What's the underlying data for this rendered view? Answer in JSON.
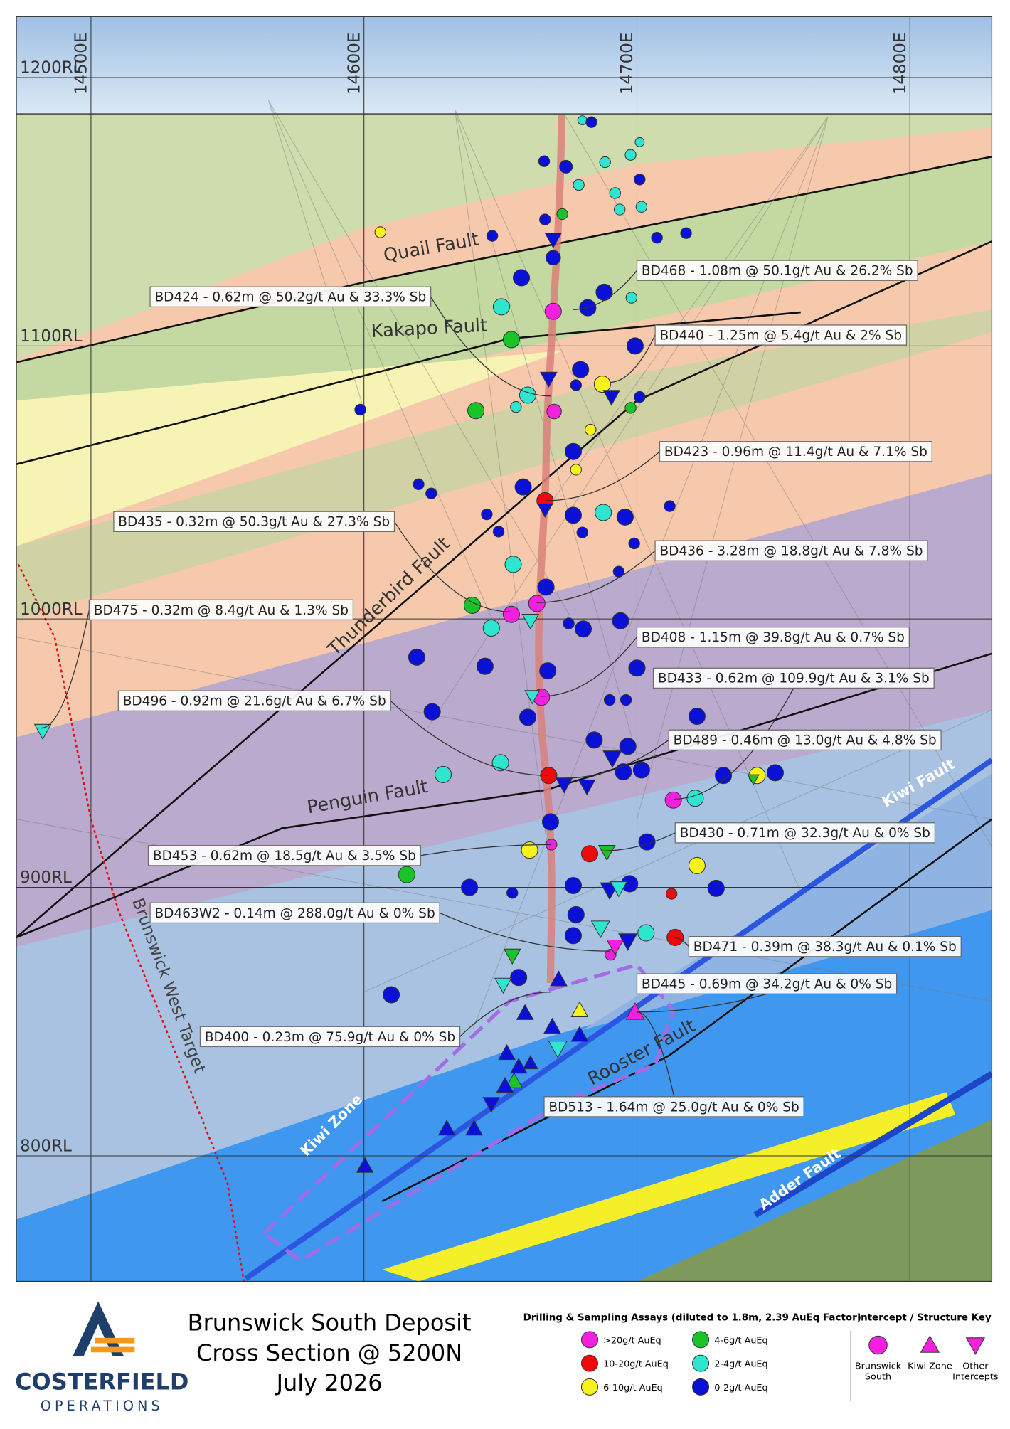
{
  "grid": {
    "eastings": [
      "14500E",
      "14600E",
      "14700E",
      "14800E"
    ],
    "rls": [
      "1200RL",
      "1100RL",
      "1000RL",
      "900RL",
      "800RL"
    ]
  },
  "structures": {
    "quail": "Quail Fault",
    "kakapo": "Kakapo Fault",
    "thunderbird": "Thunderbird Fault",
    "penguin": "Penguin Fault",
    "kiwi_fault": "Kiwi Fault",
    "rooster": "Rooster Fault",
    "adder": "Adder Fault",
    "kiwi_zone": "Kiwi Zone",
    "brunswick_west": "Brunswick West Target"
  },
  "intercepts": [
    "BD468 - 1.08m @ 50.1g/t Au & 26.2% Sb",
    "BD424 - 0.62m @ 50.2g/t Au & 33.3% Sb",
    "BD440 - 1.25m @ 5.4g/t Au & 2% Sb",
    "BD423 - 0.96m @ 11.4g/t Au & 7.1% Sb",
    "BD435 - 0.32m @ 50.3g/t Au & 27.3% Sb",
    "BD436 - 3.28m @ 18.8g/t Au & 7.8% Sb",
    "BD475 - 0.32m @ 8.4g/t Au & 1.3% Sb",
    "BD408 - 1.15m @ 39.8g/t Au & 0.7% Sb",
    "BD433 - 0.62m @ 109.9g/t Au & 3.1% Sb",
    "BD496 - 0.92m @ 21.6g/t Au & 6.7% Sb",
    "BD489 - 0.46m @ 13.0g/t Au & 4.8% Sb",
    "BD430 - 0.71m @ 32.3g/t Au & 0% Sb",
    "BD453 - 0.62m @ 18.5g/t Au & 3.5% Sb",
    "BD463W2 - 0.14m @ 288.0g/t Au & 0% Sb",
    "BD471 - 0.39m @ 38.3g/t Au & 0.1% Sb",
    "BD445 - 0.69m @ 34.2g/t Au & 0% Sb",
    "BD400 - 0.23m @ 75.9g/t Au & 0% Sb",
    "BD513 - 1.64m @ 25.0g/t Au & 0% Sb"
  ],
  "title": [
    "Brunswick South Deposit",
    "Cross Section @ 5200N",
    "July 2026"
  ],
  "logo": {
    "name": "COSTERFIELD",
    "sub": "OPERATIONS"
  },
  "legend": {
    "assays": {
      "title": "Drilling & Sampling Assays (diluted to 1.8m, 2.39 AuEq Factor)",
      "items": [
        {
          "label": ">20g/t AuEq",
          "color": "#f51fe0"
        },
        {
          "label": "10-20g/t AuEq",
          "color": "#ee0a0a"
        },
        {
          "label": "6-10g/t AuEq",
          "color": "#f7f21a"
        },
        {
          "label": "4-6g/t AuEq",
          "color": "#18c42a"
        },
        {
          "label": "2-4g/t AuEq",
          "color": "#2ee6cf"
        },
        {
          "label": "0-2g/t AuEq",
          "color": "#0a10d6"
        }
      ]
    },
    "key": {
      "title": "Intercept / Structure Key",
      "items": [
        "Brunswick South",
        "Kiwi Zone",
        "Other Intercepts"
      ]
    }
  }
}
